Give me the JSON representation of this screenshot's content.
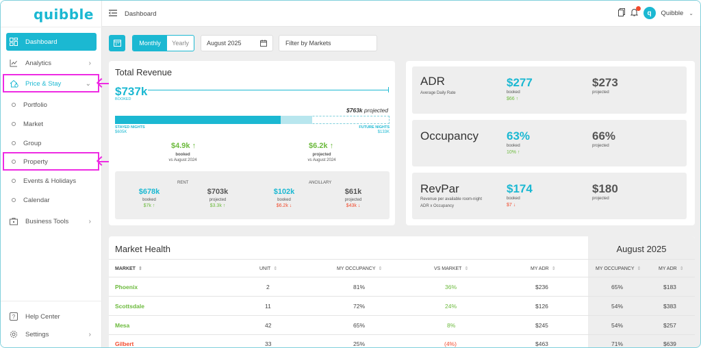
{
  "app": {
    "logo": "quibble"
  },
  "sidebar": {
    "items": [
      {
        "label": "Dashboard"
      },
      {
        "label": "Analytics"
      },
      {
        "label": "Price & Stay"
      },
      {
        "label": "Portfolio"
      },
      {
        "label": "Market"
      },
      {
        "label": "Group"
      },
      {
        "label": "Property"
      },
      {
        "label": "Events & Holidays"
      },
      {
        "label": "Calendar"
      },
      {
        "label": "Business Tools"
      },
      {
        "label": "Help Center"
      },
      {
        "label": "Settings"
      }
    ]
  },
  "header": {
    "breadcrumb": "Dashboard",
    "user_name": "Quibble",
    "avatar_initial": "q"
  },
  "filters": {
    "monthly": "Monthly",
    "yearly": "Yearly",
    "month": "August 2025",
    "market_placeholder": "Filter by Markets"
  },
  "total_revenue": {
    "title": "Total Revenue",
    "booked_value": "$737k",
    "booked_label": "BOOKED",
    "projected_value": "$763k",
    "projected_word": "projected",
    "stayed_label": "STAYED NIGHTS",
    "stayed_value": "$605k",
    "future_label": "FUTURE NIGHTS",
    "future_value": "$133k",
    "booked_delta": "$4.9k",
    "booked_delta_label": "booked",
    "booked_delta_sub": "vs August 2024",
    "projected_delta": "$6.2k",
    "projected_delta_label": "projected",
    "projected_delta_sub": "vs August 2024",
    "rent_label": "RENT",
    "ancillary_label": "ANCILLARY",
    "rent_booked": "$678k",
    "rent_booked_label": "booked",
    "rent_booked_delta": "$7k",
    "rent_projected": "$703k",
    "rent_projected_label": "projected",
    "rent_projected_delta": "$3.3k",
    "anc_booked": "$102k",
    "anc_booked_label": "booked",
    "anc_booked_delta": "$6.2k",
    "anc_projected": "$61k",
    "anc_projected_label": "projected",
    "anc_projected_delta": "$43k"
  },
  "metrics": {
    "adr": {
      "title": "ADR",
      "subtitle": "Average Daily Rate",
      "booked": "$277",
      "booked_label": "booked",
      "delta": "$66",
      "projected": "$273",
      "projected_label": "projected"
    },
    "occupancy": {
      "title": "Occupancy",
      "booked": "63%",
      "booked_label": "booked",
      "delta": "10%",
      "projected": "66%",
      "projected_label": "projected"
    },
    "revpar": {
      "title": "RevPar",
      "subtitle1": "Revenue per available room-night",
      "subtitle2": "ADR x Occupancy",
      "booked": "$174",
      "booked_label": "booked",
      "delta": "$7",
      "projected": "$180",
      "projected_label": "projected"
    }
  },
  "market_health": {
    "title": "Market Health",
    "right_title": "August 2025",
    "columns": [
      "MARKET",
      "UNIT",
      "MY OCCUPANCY",
      "VS MARKET",
      "MY ADR",
      "MY OCCUPANCY",
      "MY ADR"
    ],
    "rows": [
      {
        "market": "Phoenix",
        "unit": "2",
        "my_occ": "81%",
        "vs_market": "36%",
        "my_adr": "$236",
        "mkt_occ": "65%",
        "mkt_adr": "$183"
      },
      {
        "market": "Scottsdale",
        "unit": "11",
        "my_occ": "72%",
        "vs_market": "24%",
        "my_adr": "$126",
        "mkt_occ": "54%",
        "mkt_adr": "$383"
      },
      {
        "market": "Mesa",
        "unit": "42",
        "my_occ": "65%",
        "vs_market": "8%",
        "my_adr": "$245",
        "mkt_occ": "54%",
        "mkt_adr": "$257"
      },
      {
        "market": "Gilbert",
        "unit": "33",
        "my_occ": "25%",
        "vs_market": "(4%)",
        "my_adr": "$463",
        "mkt_occ": "71%",
        "mkt_adr": "$639"
      }
    ]
  },
  "colors": {
    "accent": "#1bb8d2",
    "positive": "#6cba3d",
    "negative": "#f24a2c",
    "highlight": "#ee2ae3"
  }
}
